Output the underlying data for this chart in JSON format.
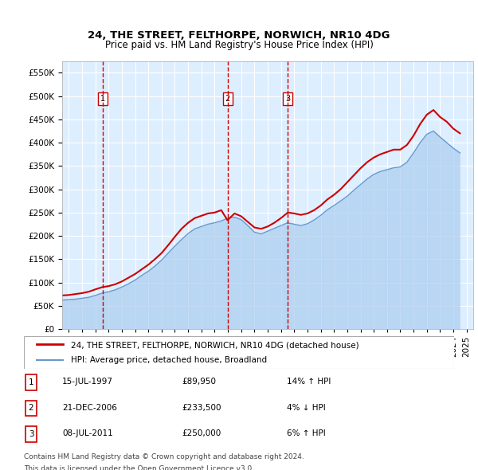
{
  "title": "24, THE STREET, FELTHORPE, NORWICH, NR10 4DG",
  "subtitle": "Price paid vs. HM Land Registry's House Price Index (HPI)",
  "legend_line1": "24, THE STREET, FELTHORPE, NORWICH, NR10 4DG (detached house)",
  "legend_line2": "HPI: Average price, detached house, Broadland",
  "footer1": "Contains HM Land Registry data © Crown copyright and database right 2024.",
  "footer2": "This data is licensed under the Open Government Licence v3.0.",
  "transactions": [
    {
      "num": 1,
      "date": "15-JUL-1997",
      "price": "£89,950",
      "hpi": "14% ↑ HPI",
      "x_year": 1997.54
    },
    {
      "num": 2,
      "date": "21-DEC-2006",
      "price": "£233,500",
      "hpi": "4% ↓ HPI",
      "x_year": 2006.97
    },
    {
      "num": 3,
      "date": "08-JUL-2011",
      "price": "£250,000",
      "hpi": "6% ↑ HPI",
      "x_year": 2011.52
    }
  ],
  "property_color": "#cc0000",
  "hpi_color": "#aaccee",
  "hpi_line_color": "#6699cc",
  "vline_color": "#cc0000",
  "background_color": "#ddeeff",
  "plot_bg": "#ddeeff",
  "ylim": [
    0,
    575000
  ],
  "yticks": [
    0,
    50000,
    100000,
    150000,
    200000,
    250000,
    300000,
    350000,
    400000,
    450000,
    500000,
    550000
  ],
  "xlim_start": 1994.5,
  "xlim_end": 2025.5,
  "property_line": {
    "dates": [
      1994.5,
      1995.0,
      1995.5,
      1996.0,
      1996.5,
      1997.0,
      1997.54,
      1998.0,
      1998.5,
      1999.0,
      1999.5,
      2000.0,
      2000.5,
      2001.0,
      2001.5,
      2002.0,
      2002.5,
      2003.0,
      2003.5,
      2004.0,
      2004.5,
      2005.0,
      2005.5,
      2006.0,
      2006.5,
      2006.97,
      2007.5,
      2008.0,
      2008.5,
      2009.0,
      2009.5,
      2010.0,
      2010.5,
      2011.0,
      2011.52,
      2012.0,
      2012.5,
      2013.0,
      2013.5,
      2014.0,
      2014.5,
      2015.0,
      2015.5,
      2016.0,
      2016.5,
      2017.0,
      2017.5,
      2018.0,
      2018.5,
      2019.0,
      2019.5,
      2020.0,
      2020.5,
      2021.0,
      2021.5,
      2022.0,
      2022.5,
      2023.0,
      2023.5,
      2024.0,
      2024.5
    ],
    "values": [
      72000,
      73000,
      75000,
      77000,
      80000,
      85000,
      89950,
      92000,
      96000,
      102000,
      110000,
      118000,
      128000,
      138000,
      150000,
      163000,
      180000,
      198000,
      215000,
      228000,
      238000,
      243000,
      248000,
      250000,
      255000,
      233500,
      248000,
      242000,
      230000,
      218000,
      215000,
      220000,
      228000,
      238000,
      250000,
      248000,
      245000,
      248000,
      255000,
      265000,
      278000,
      288000,
      300000,
      315000,
      330000,
      345000,
      358000,
      368000,
      375000,
      380000,
      385000,
      385000,
      395000,
      415000,
      440000,
      460000,
      470000,
      455000,
      445000,
      430000,
      420000
    ]
  },
  "hpi_line": {
    "dates": [
      1994.5,
      1995.0,
      1995.5,
      1996.0,
      1996.5,
      1997.0,
      1997.5,
      1998.0,
      1998.5,
      1999.0,
      1999.5,
      2000.0,
      2000.5,
      2001.0,
      2001.5,
      2002.0,
      2002.5,
      2003.0,
      2003.5,
      2004.0,
      2004.5,
      2005.0,
      2005.5,
      2006.0,
      2006.5,
      2007.0,
      2007.5,
      2008.0,
      2008.5,
      2009.0,
      2009.5,
      2010.0,
      2010.5,
      2011.0,
      2011.5,
      2012.0,
      2012.5,
      2013.0,
      2013.5,
      2014.0,
      2014.5,
      2015.0,
      2015.5,
      2016.0,
      2016.5,
      2017.0,
      2017.5,
      2018.0,
      2018.5,
      2019.0,
      2019.5,
      2020.0,
      2020.5,
      2021.0,
      2021.5,
      2022.0,
      2022.5,
      2023.0,
      2023.5,
      2024.0,
      2024.5
    ],
    "values": [
      62000,
      63000,
      64000,
      66000,
      68000,
      72000,
      77000,
      80000,
      84000,
      90000,
      97000,
      105000,
      115000,
      124000,
      135000,
      148000,
      163000,
      178000,
      192000,
      205000,
      215000,
      220000,
      225000,
      228000,
      232000,
      238000,
      240000,
      235000,
      222000,
      208000,
      204000,
      210000,
      216000,
      222000,
      228000,
      225000,
      222000,
      226000,
      234000,
      244000,
      256000,
      265000,
      275000,
      285000,
      298000,
      310000,
      322000,
      332000,
      338000,
      342000,
      346000,
      348000,
      358000,
      378000,
      400000,
      418000,
      425000,
      412000,
      400000,
      388000,
      378000
    ]
  }
}
